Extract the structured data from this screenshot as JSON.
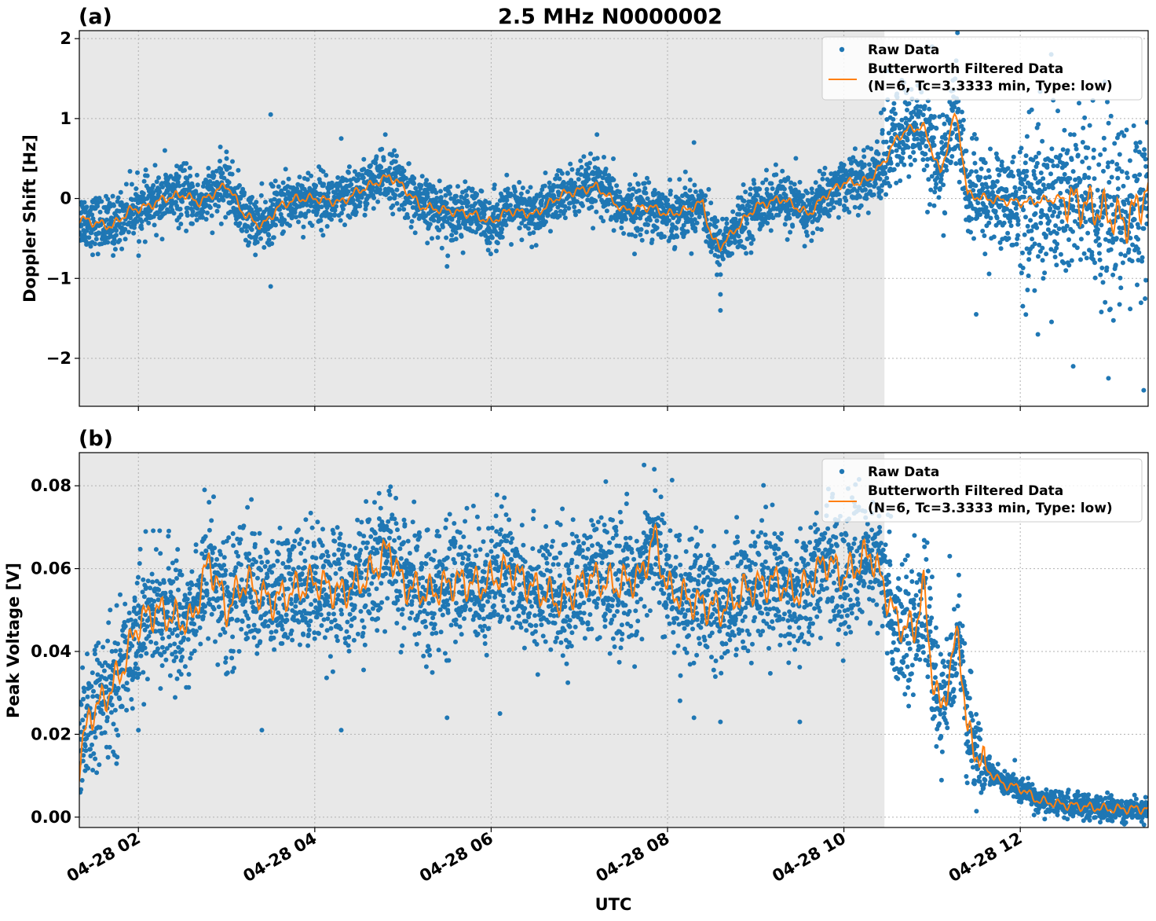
{
  "figure": {
    "title": "2.5 MHz N0000002",
    "xlabel": "UTC"
  },
  "colors": {
    "raw": "#1f77b4",
    "filtered": "#ff7f0e",
    "shade": "#e8e8e8",
    "grid": "#b0b0b0"
  },
  "chart_data": [
    {
      "type": "scatter",
      "panel_label": "(a)",
      "ylabel": "Doppler Shift [Hz]",
      "xlim_hours": [
        1.33,
        13.45
      ],
      "ylim": [
        -2.6,
        2.1
      ],
      "yticks": [
        -2,
        -1,
        0,
        1,
        2
      ],
      "ytick_labels": [
        "−2",
        "−1",
        "0",
        "1",
        "2"
      ],
      "shaded_until_hour": 10.46,
      "legend": {
        "placement": "top-right",
        "raw_label": "Raw Data",
        "filtered_label_line1": "Butterworth Filtered Data",
        "filtered_label_line2": "(N=6, Tc=3.3333 min, Type: low)"
      },
      "series": [
        {
          "name": "Butterworth Filtered Data",
          "style": "line",
          "hours": [
            1.33,
            1.5,
            1.7,
            1.9,
            2.1,
            2.3,
            2.5,
            2.7,
            2.9,
            3.0,
            3.2,
            3.4,
            3.6,
            3.8,
            4.0,
            4.3,
            4.5,
            4.7,
            4.85,
            5.0,
            5.2,
            5.5,
            5.8,
            6.0,
            6.2,
            6.5,
            6.8,
            7.0,
            7.2,
            7.5,
            7.8,
            8.0,
            8.2,
            8.4,
            8.5,
            8.6,
            8.8,
            9.0,
            9.3,
            9.6,
            9.8,
            10.0,
            10.2,
            10.3,
            10.45,
            10.6,
            10.7,
            10.9,
            11.1,
            11.25,
            11.3,
            11.4,
            11.6,
            12.0,
            12.5,
            12.8,
            13.0,
            13.2,
            13.45
          ],
          "values": [
            -0.25,
            -0.3,
            -0.35,
            -0.15,
            -0.1,
            0.0,
            0.05,
            -0.05,
            0.1,
            0.18,
            -0.2,
            -0.35,
            -0.1,
            0.0,
            0.0,
            -0.05,
            0.1,
            0.2,
            0.28,
            0.15,
            -0.1,
            -0.15,
            -0.2,
            -0.3,
            -0.15,
            -0.2,
            0.05,
            0.1,
            0.15,
            -0.15,
            -0.1,
            -0.2,
            -0.15,
            -0.05,
            -0.5,
            -0.6,
            -0.35,
            -0.1,
            0.0,
            -0.2,
            0.05,
            0.2,
            0.2,
            0.25,
            0.45,
            0.75,
            0.85,
            0.9,
            0.3,
            1.05,
            0.9,
            0.05,
            0.0,
            -0.05,
            0.0,
            -0.1,
            -0.2,
            -0.3,
            0.1
          ]
        },
        {
          "name": "Raw Data",
          "style": "points",
          "note_spread": "raw points scatter about the filtered curve",
          "hours": [
            2.3,
            3.0,
            3.5,
            3.5,
            4.3,
            4.8,
            5.5,
            7.2,
            8.3,
            8.6,
            8.6,
            10.5,
            11.0,
            11.5,
            12.2,
            12.6,
            13.0,
            13.4
          ],
          "values": [
            0.6,
            0.5,
            1.05,
            -1.1,
            0.75,
            0.8,
            -0.85,
            0.8,
            0.7,
            -1.4,
            -1.2,
            1.6,
            1.9,
            -1.45,
            -1.7,
            -2.1,
            -2.25,
            -2.4
          ]
        }
      ]
    },
    {
      "type": "scatter",
      "panel_label": "(b)",
      "ylabel": "Peak Voltage [V]",
      "xlim_hours": [
        1.33,
        13.45
      ],
      "ylim": [
        -0.0025,
        0.088
      ],
      "yticks": [
        0.0,
        0.02,
        0.04,
        0.06,
        0.08
      ],
      "ytick_labels": [
        "0.00",
        "0.02",
        "0.04",
        "0.06",
        "0.08"
      ],
      "shaded_until_hour": 10.46,
      "xticks_hours": [
        2,
        4,
        6,
        8,
        10,
        12
      ],
      "xtick_labels": [
        "04-28 02",
        "04-28 04",
        "04-28 06",
        "04-28 08",
        "04-28 10",
        "04-28 12"
      ],
      "legend": {
        "placement": "top-right",
        "raw_label": "Raw Data",
        "filtered_label_line1": "Butterworth Filtered Data",
        "filtered_label_line2": "(N=6, Tc=3.3333 min, Type: low)"
      },
      "series": [
        {
          "name": "Butterworth Filtered Data",
          "style": "line",
          "hours": [
            1.33,
            1.45,
            1.6,
            1.8,
            2.0,
            2.2,
            2.4,
            2.6,
            2.8,
            3.0,
            3.2,
            3.5,
            3.8,
            4.0,
            4.3,
            4.6,
            4.85,
            5.0,
            5.3,
            5.6,
            5.9,
            6.2,
            6.5,
            6.8,
            7.1,
            7.4,
            7.7,
            7.85,
            8.0,
            8.3,
            8.6,
            8.9,
            9.2,
            9.5,
            9.8,
            10.0,
            10.3,
            10.5,
            10.6,
            10.8,
            10.9,
            11.0,
            11.1,
            11.2,
            11.3,
            11.4,
            11.6,
            11.8,
            12.0,
            12.2,
            12.5,
            13.0,
            13.45
          ],
          "values": [
            0.013,
            0.025,
            0.028,
            0.035,
            0.047,
            0.05,
            0.048,
            0.047,
            0.062,
            0.05,
            0.057,
            0.052,
            0.055,
            0.057,
            0.054,
            0.058,
            0.065,
            0.056,
            0.054,
            0.057,
            0.056,
            0.06,
            0.055,
            0.052,
            0.058,
            0.056,
            0.058,
            0.068,
            0.055,
            0.052,
            0.05,
            0.055,
            0.057,
            0.054,
            0.062,
            0.058,
            0.064,
            0.053,
            0.047,
            0.045,
            0.056,
            0.035,
            0.025,
            0.035,
            0.045,
            0.02,
            0.012,
            0.008,
            0.007,
            0.004,
            0.003,
            0.002,
            0.002
          ]
        },
        {
          "name": "Raw Data",
          "style": "points",
          "note_spread": "raw points scatter about the filtered curve",
          "hours": [
            1.34,
            2.0,
            2.75,
            3.4,
            4.3,
            5.5,
            6.1,
            7.3,
            7.85,
            8.3,
            8.6,
            9.5,
            10.5,
            10.8,
            11.0,
            11.2
          ],
          "values": [
            0.006,
            0.021,
            0.079,
            0.021,
            0.021,
            0.024,
            0.025,
            0.081,
            0.084,
            0.024,
            0.023,
            0.023,
            0.073,
            0.068,
            0.058,
            0.063
          ]
        }
      ]
    }
  ]
}
